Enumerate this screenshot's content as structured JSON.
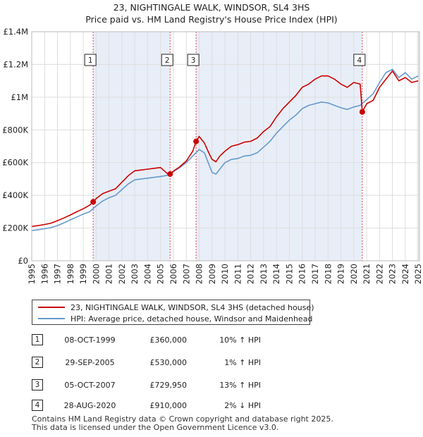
{
  "chart_data": {
    "type": "line",
    "title": "23, NIGHTINGALE WALK, WINDSOR, SL4 3HS",
    "subtitle": "Price paid vs. HM Land Registry's House Price Index (HPI)",
    "xlim": [
      1995,
      2025.1
    ],
    "ylim": [
      0,
      1400000
    ],
    "x_ticks": [
      1995,
      1996,
      1997,
      1998,
      1999,
      2000,
      2001,
      2002,
      2003,
      2004,
      2005,
      2006,
      2007,
      2008,
      2009,
      2010,
      2011,
      2012,
      2013,
      2014,
      2015,
      2016,
      2017,
      2018,
      2019,
      2020,
      2021,
      2022,
      2023,
      2024,
      2025
    ],
    "y_ticks": [
      {
        "value": 0,
        "label": "£0"
      },
      {
        "value": 200000,
        "label": "£200K"
      },
      {
        "value": 400000,
        "label": "£400K"
      },
      {
        "value": 600000,
        "label": "£600K"
      },
      {
        "value": 800000,
        "label": "£800K"
      },
      {
        "value": 1000000,
        "label": "£1M"
      },
      {
        "value": 1200000,
        "label": "£1.2M"
      },
      {
        "value": 1400000,
        "label": "£1.4M"
      }
    ],
    "shaded_ranges": [
      [
        1999.77,
        2005.74
      ],
      [
        2007.76,
        2020.66
      ]
    ],
    "series": [
      {
        "name": "23, NIGHTINGALE WALK, WINDSOR, SL4 3HS (detached house)",
        "color": "#cc0000",
        "x": [
          1995,
          1995.5,
          1996,
          1996.5,
          1997,
          1997.5,
          1998,
          1998.5,
          1999,
          1999.5,
          1999.77,
          2000,
          2000.5,
          2001,
          2001.5,
          2002,
          2002.5,
          2003,
          2003.5,
          2004,
          2004.5,
          2005,
          2005.5,
          2005.74,
          2006,
          2006.5,
          2007,
          2007.5,
          2007.76,
          2008,
          2008.4,
          2008.8,
          2009,
          2009.3,
          2009.6,
          2010,
          2010.5,
          2011,
          2011.5,
          2012,
          2012.5,
          2013,
          2013.5,
          2014,
          2014.5,
          2015,
          2015.5,
          2016,
          2016.5,
          2017,
          2017.5,
          2018,
          2018.5,
          2019,
          2019.5,
          2020,
          2020.5,
          2020.66,
          2021,
          2021.5,
          2022,
          2022.5,
          2023,
          2023.5,
          2024,
          2024.5,
          2025
        ],
        "values": [
          210000,
          215000,
          222000,
          230000,
          245000,
          262000,
          280000,
          300000,
          318000,
          340000,
          360000,
          380000,
          410000,
          425000,
          440000,
          480000,
          520000,
          550000,
          555000,
          560000,
          565000,
          570000,
          535000,
          530000,
          548000,
          575000,
          610000,
          670000,
          729950,
          760000,
          720000,
          650000,
          620000,
          605000,
          640000,
          670000,
          700000,
          710000,
          725000,
          730000,
          750000,
          790000,
          820000,
          880000,
          930000,
          970000,
          1010000,
          1060000,
          1080000,
          1110000,
          1130000,
          1130000,
          1110000,
          1080000,
          1060000,
          1090000,
          1080000,
          910000,
          960000,
          980000,
          1060000,
          1110000,
          1160000,
          1100000,
          1120000,
          1090000,
          1100000
        ]
      },
      {
        "name": "HPI: Average price, detached house, Windsor and Maidenhead",
        "color": "#6699cc",
        "x": [
          1995,
          1995.5,
          1996,
          1996.5,
          1997,
          1997.5,
          1998,
          1998.5,
          1999,
          1999.5,
          2000,
          2000.5,
          2001,
          2001.5,
          2002,
          2002.5,
          2003,
          2003.5,
          2004,
          2004.5,
          2005,
          2005.5,
          2006,
          2006.5,
          2007,
          2007.5,
          2008,
          2008.4,
          2008.8,
          2009,
          2009.3,
          2009.6,
          2010,
          2010.5,
          2011,
          2011.5,
          2012,
          2012.5,
          2013,
          2013.5,
          2014,
          2014.5,
          2015,
          2015.5,
          2016,
          2016.5,
          2017,
          2017.5,
          2018,
          2018.5,
          2019,
          2019.5,
          2020,
          2020.5,
          2021,
          2021.5,
          2022,
          2022.5,
          2023,
          2023.5,
          2024,
          2024.5,
          2025
        ],
        "values": [
          185000,
          190000,
          196000,
          203000,
          215000,
          232000,
          250000,
          268000,
          285000,
          300000,
          335000,
          365000,
          385000,
          400000,
          435000,
          470000,
          495000,
          500000,
          505000,
          510000,
          515000,
          522000,
          545000,
          570000,
          600000,
          640000,
          680000,
          660000,
          580000,
          540000,
          530000,
          560000,
          600000,
          620000,
          625000,
          640000,
          645000,
          660000,
          695000,
          730000,
          780000,
          820000,
          860000,
          890000,
          930000,
          950000,
          960000,
          970000,
          965000,
          950000,
          935000,
          925000,
          940000,
          950000,
          985000,
          1020000,
          1090000,
          1150000,
          1170000,
          1120000,
          1150000,
          1110000,
          1130000
        ]
      }
    ],
    "sales": [
      {
        "label": "1",
        "x": 1999.77,
        "value": 360000
      },
      {
        "label": "2",
        "x": 2005.74,
        "value": 530000
      },
      {
        "label": "3",
        "x": 2007.76,
        "value": 729950
      },
      {
        "label": "4",
        "x": 2020.66,
        "value": 910000
      }
    ]
  },
  "legend": {
    "property": "23, NIGHTINGALE WALK, WINDSOR, SL4 3HS (detached house)",
    "hpi": "HPI: Average price, detached house, Windsor and Maidenhead",
    "property_color": "#cc0000",
    "hpi_color": "#6699cc"
  },
  "sales_table": [
    {
      "num": "1",
      "date": "08-OCT-1999",
      "price": "£360,000",
      "hpi": "10% ↑ HPI"
    },
    {
      "num": "2",
      "date": "29-SEP-2005",
      "price": "£530,000",
      "hpi": "1% ↑ HPI"
    },
    {
      "num": "3",
      "date": "05-OCT-2007",
      "price": "£729,950",
      "hpi": "13% ↑ HPI"
    },
    {
      "num": "4",
      "date": "28-AUG-2020",
      "price": "£910,000",
      "hpi": "2% ↓ HPI"
    }
  ],
  "footer": {
    "line1": "Contains HM Land Registry data © Crown copyright and database right 2025.",
    "line2": "This data is licensed under the Open Government Licence v3.0."
  }
}
